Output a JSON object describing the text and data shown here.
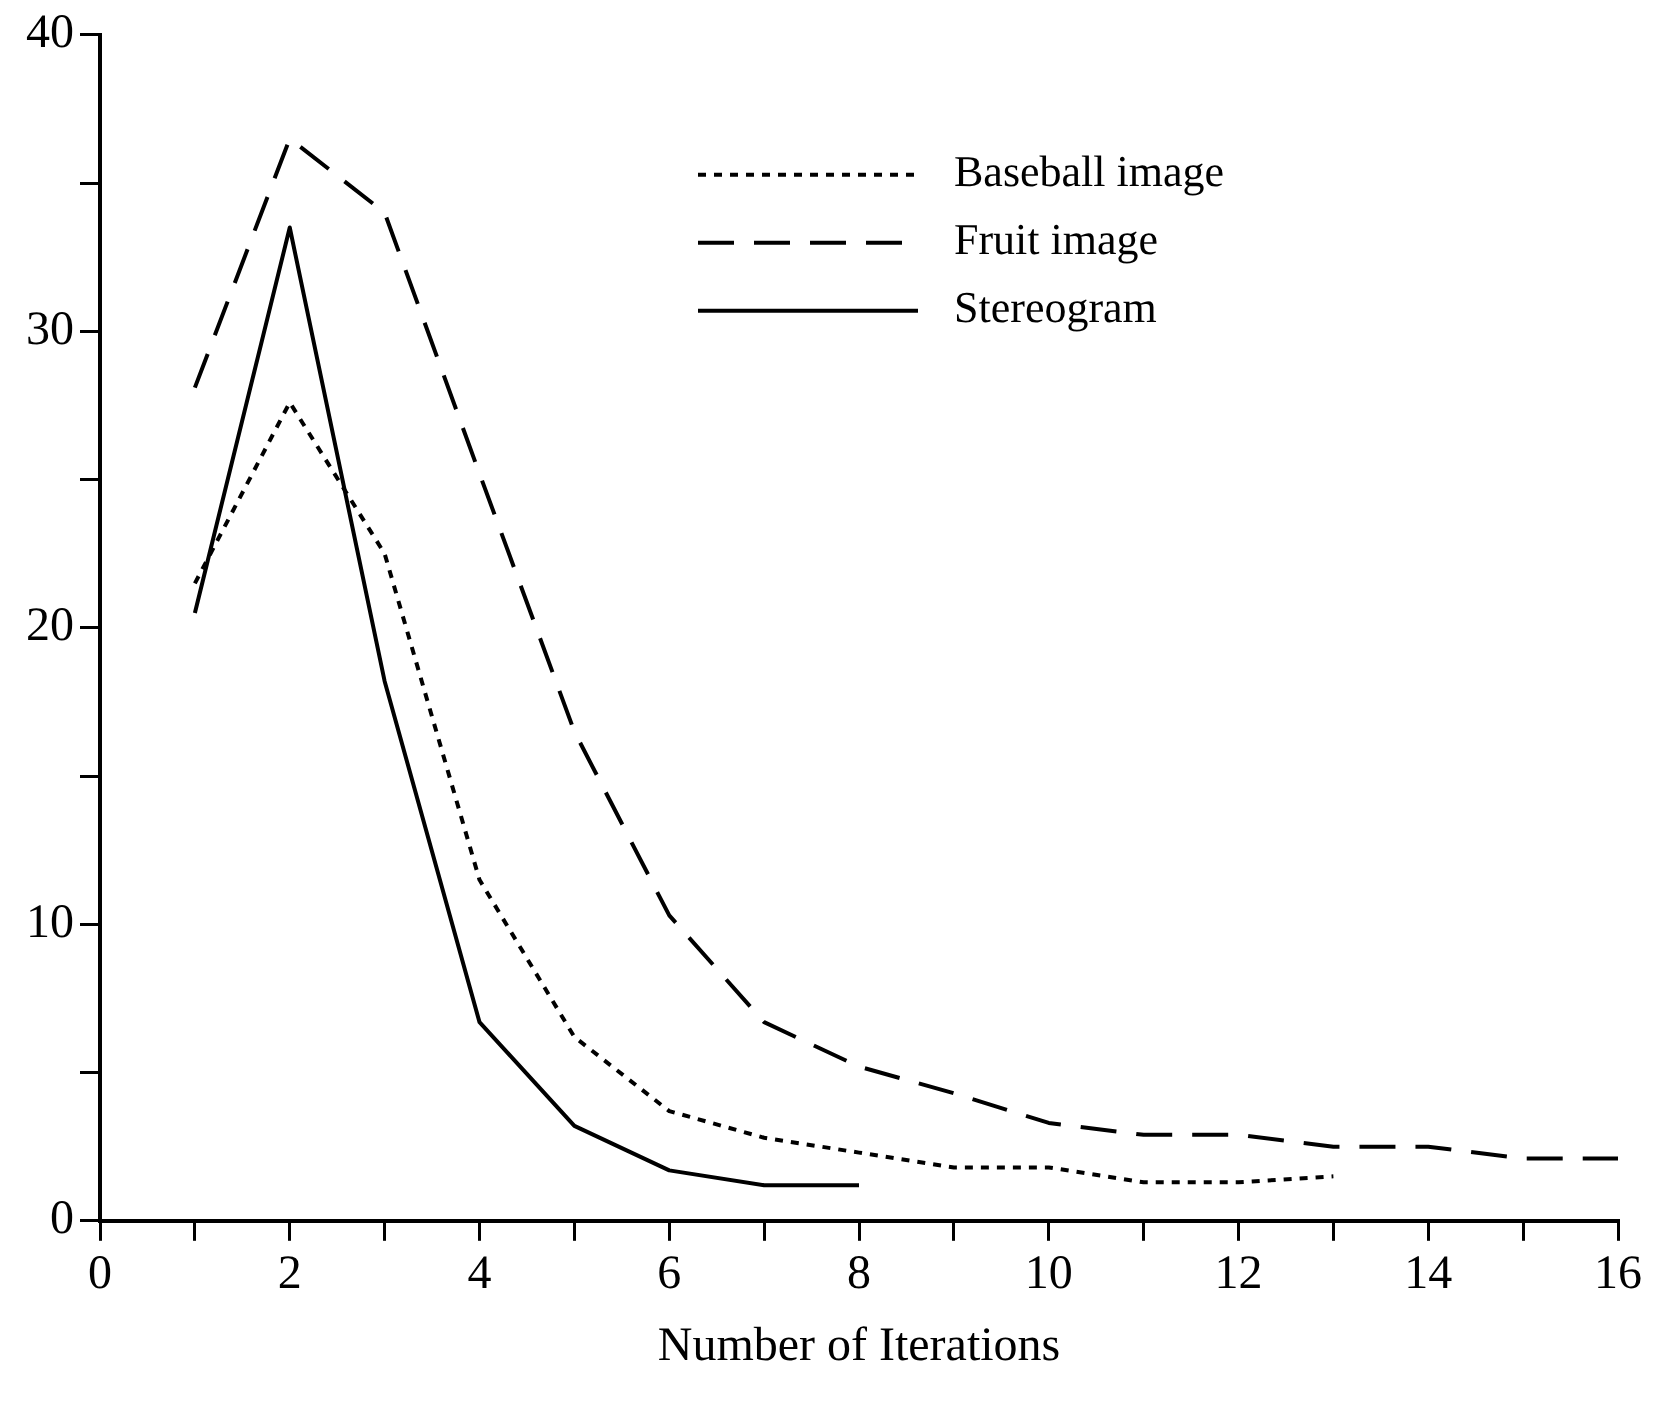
{
  "chart_data": {
    "type": "line",
    "xlabel": "Number of Iterations",
    "xlim": [
      0,
      16
    ],
    "xticks": [
      0,
      {
        "value": 1,
        "label": null
      },
      2,
      {
        "value": 3,
        "label": null
      },
      4,
      {
        "value": 5,
        "label": null
      },
      6,
      {
        "value": 7,
        "label": null
      },
      8,
      {
        "value": 9,
        "label": null
      },
      10,
      {
        "value": 11,
        "label": null
      },
      12,
      {
        "value": 13,
        "label": null
      },
      14,
      {
        "value": 15,
        "label": null
      },
      16
    ],
    "ylim": [
      0,
      40
    ],
    "yticks": [
      0,
      {
        "value": 5,
        "label": null
      },
      10,
      {
        "value": 15,
        "label": null
      },
      20,
      {
        "value": 25,
        "label": null
      },
      30,
      {
        "value": 35,
        "label": null
      },
      40
    ],
    "grid": false,
    "legend": "top right",
    "marker": "none",
    "series": [
      {
        "name": "Baseball image",
        "color": "#000000",
        "line_style": "dotted",
        "x": [
          1,
          2,
          3,
          4,
          5,
          6,
          7,
          8,
          9,
          10,
          11,
          12,
          13
        ],
        "values": [
          21.5,
          27.6,
          22.5,
          11.5,
          6.2,
          3.7,
          2.8,
          2.3,
          1.8,
          1.8,
          1.3,
          1.3,
          1.5
        ]
      },
      {
        "name": "Fruit image",
        "color": "#000000",
        "line_style": "dashed",
        "x": [
          1,
          2,
          3,
          4,
          5,
          6,
          7,
          8,
          9,
          10,
          11,
          12,
          13,
          14,
          15,
          16
        ],
        "values": [
          28.1,
          36.5,
          34.0,
          25.2,
          16.5,
          10.3,
          6.7,
          5.2,
          4.3,
          3.3,
          2.9,
          2.9,
          2.5,
          2.5,
          2.1,
          2.1
        ]
      },
      {
        "name": "Stereogram",
        "color": "#000000",
        "line_style": "solid",
        "x": [
          1,
          2,
          3,
          4,
          5,
          6,
          7,
          8
        ],
        "values": [
          20.5,
          33.5,
          18.2,
          6.7,
          3.2,
          1.7,
          1.2,
          1.2
        ]
      }
    ]
  }
}
